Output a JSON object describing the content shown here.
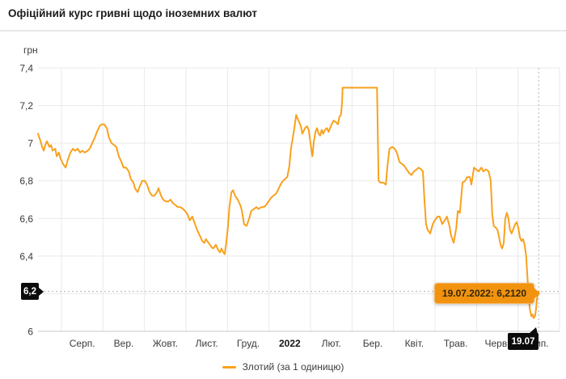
{
  "header": {
    "title": "Офіційний курс гривні щодо іноземних валют"
  },
  "colors": {
    "line": "#f9a11c",
    "tooltip_bg": "#f2930f",
    "tooltip_border": "#f6b35a",
    "tooltip_text": "#33270a",
    "crosshair_badge_bg": "#0c0c0c",
    "crosshair_badge_text": "#ffffff",
    "grid": "#e9e9e9",
    "axis": "#c8c8c8",
    "dotted": "#b3b3b3"
  },
  "crosshair": {
    "t": 0.96,
    "value": 6.212,
    "label": "19.07.2022: 6,2120",
    "x_label": "19.07",
    "y_label": "6,2"
  },
  "chart_data": {
    "type": "line",
    "title": "Офіційний курс гривні щодо іноземних валют",
    "ylabel": "грн",
    "xlabel": "",
    "grid": true,
    "legend_position": "bottom",
    "y_axis": {
      "min": 6.0,
      "max": 7.4,
      "ticks": [
        {
          "label": "7,4",
          "value": 7.4
        },
        {
          "label": "7,2",
          "value": 7.2
        },
        {
          "label": "7",
          "value": 7.0
        },
        {
          "label": "6,8",
          "value": 6.8
        },
        {
          "label": "6,6",
          "value": 6.6
        },
        {
          "label": "6,4",
          "value": 6.4
        },
        {
          "label": "6,2",
          "value": 6.2,
          "highlighted": true
        },
        {
          "label": "6",
          "value": 6.0
        }
      ]
    },
    "x_axis": {
      "months": [
        {
          "label": "Серп."
        },
        {
          "label": "Вер."
        },
        {
          "label": "Жовт."
        },
        {
          "label": "Лист."
        },
        {
          "label": "Груд."
        },
        {
          "label": "2022",
          "bold": true
        },
        {
          "label": "Лют."
        },
        {
          "label": "Бер."
        },
        {
          "label": "Квіт."
        },
        {
          "label": "Трав."
        },
        {
          "label": "Черв."
        },
        {
          "label": "Лип."
        }
      ]
    },
    "series": [
      {
        "name": "Злотий (за 1 одиницю)",
        "color": "#f9a11c",
        "points": [
          [
            0,
            7.05
          ],
          [
            0.005,
            7.01
          ],
          [
            0.008,
            6.98
          ],
          [
            0.011,
            6.96
          ],
          [
            0.014,
            6.99
          ],
          [
            0.017,
            7.01
          ],
          [
            0.022,
            6.98
          ],
          [
            0.025,
            6.99
          ],
          [
            0.028,
            6.96
          ],
          [
            0.033,
            6.97
          ],
          [
            0.036,
            6.93
          ],
          [
            0.04,
            6.95
          ],
          [
            0.043,
            6.92
          ],
          [
            0.048,
            6.89
          ],
          [
            0.053,
            6.87
          ],
          [
            0.057,
            6.91
          ],
          [
            0.062,
            6.95
          ],
          [
            0.067,
            6.97
          ],
          [
            0.071,
            6.96
          ],
          [
            0.076,
            6.97
          ],
          [
            0.081,
            6.95
          ],
          [
            0.085,
            6.96
          ],
          [
            0.09,
            6.95
          ],
          [
            0.095,
            6.96
          ],
          [
            0.099,
            6.97
          ],
          [
            0.104,
            7.0
          ],
          [
            0.109,
            7.03
          ],
          [
            0.113,
            7.06
          ],
          [
            0.118,
            7.09
          ],
          [
            0.122,
            7.1
          ],
          [
            0.127,
            7.1
          ],
          [
            0.132,
            7.08
          ],
          [
            0.136,
            7.03
          ],
          [
            0.141,
            7.0
          ],
          [
            0.146,
            6.99
          ],
          [
            0.15,
            6.98
          ],
          [
            0.155,
            6.93
          ],
          [
            0.16,
            6.9
          ],
          [
            0.164,
            6.87
          ],
          [
            0.169,
            6.87
          ],
          [
            0.174,
            6.85
          ],
          [
            0.178,
            6.81
          ],
          [
            0.183,
            6.79
          ],
          [
            0.186,
            6.76
          ],
          [
            0.191,
            6.74
          ],
          [
            0.195,
            6.77
          ],
          [
            0.2,
            6.8
          ],
          [
            0.205,
            6.8
          ],
          [
            0.209,
            6.78
          ],
          [
            0.214,
            6.74
          ],
          [
            0.219,
            6.72
          ],
          [
            0.223,
            6.72
          ],
          [
            0.228,
            6.74
          ],
          [
            0.231,
            6.76
          ],
          [
            0.236,
            6.72
          ],
          [
            0.24,
            6.7
          ],
          [
            0.245,
            6.69
          ],
          [
            0.25,
            6.69
          ],
          [
            0.254,
            6.7
          ],
          [
            0.259,
            6.68
          ],
          [
            0.264,
            6.67
          ],
          [
            0.268,
            6.66
          ],
          [
            0.273,
            6.66
          ],
          [
            0.278,
            6.65
          ],
          [
            0.282,
            6.64
          ],
          [
            0.287,
            6.62
          ],
          [
            0.291,
            6.59
          ],
          [
            0.296,
            6.61
          ],
          [
            0.301,
            6.57
          ],
          [
            0.305,
            6.54
          ],
          [
            0.31,
            6.51
          ],
          [
            0.315,
            6.48
          ],
          [
            0.319,
            6.47
          ],
          [
            0.322,
            6.49
          ],
          [
            0.327,
            6.47
          ],
          [
            0.332,
            6.45
          ],
          [
            0.336,
            6.44
          ],
          [
            0.341,
            6.46
          ],
          [
            0.346,
            6.43
          ],
          [
            0.349,
            6.42
          ],
          [
            0.352,
            6.44
          ],
          [
            0.355,
            6.42
          ],
          [
            0.358,
            6.41
          ],
          [
            0.361,
            6.47
          ],
          [
            0.364,
            6.55
          ],
          [
            0.367,
            6.66
          ],
          [
            0.371,
            6.74
          ],
          [
            0.374,
            6.75
          ],
          [
            0.378,
            6.72
          ],
          [
            0.383,
            6.7
          ],
          [
            0.388,
            6.67
          ],
          [
            0.391,
            6.64
          ],
          [
            0.395,
            6.57
          ],
          [
            0.4,
            6.56
          ],
          [
            0.405,
            6.6
          ],
          [
            0.409,
            6.64
          ],
          [
            0.414,
            6.65
          ],
          [
            0.419,
            6.66
          ],
          [
            0.423,
            6.65
          ],
          [
            0.428,
            6.66
          ],
          [
            0.433,
            6.66
          ],
          [
            0.437,
            6.67
          ],
          [
            0.442,
            6.69
          ],
          [
            0.447,
            6.71
          ],
          [
            0.451,
            6.72
          ],
          [
            0.456,
            6.73
          ],
          [
            0.46,
            6.75
          ],
          [
            0.465,
            6.78
          ],
          [
            0.47,
            6.8
          ],
          [
            0.474,
            6.81
          ],
          [
            0.478,
            6.82
          ],
          [
            0.482,
            6.88
          ],
          [
            0.485,
            6.97
          ],
          [
            0.488,
            7.02
          ],
          [
            0.491,
            7.07
          ],
          [
            0.495,
            7.15
          ],
          [
            0.498,
            7.13
          ],
          [
            0.501,
            7.11
          ],
          [
            0.504,
            7.09
          ],
          [
            0.507,
            7.05
          ],
          [
            0.512,
            7.08
          ],
          [
            0.516,
            7.09
          ],
          [
            0.519,
            7.07
          ],
          [
            0.523,
            6.99
          ],
          [
            0.526,
            6.93
          ],
          [
            0.529,
            7.01
          ],
          [
            0.532,
            7.06
          ],
          [
            0.535,
            7.08
          ],
          [
            0.538,
            7.05
          ],
          [
            0.541,
            7.04
          ],
          [
            0.544,
            7.07
          ],
          [
            0.547,
            7.05
          ],
          [
            0.55,
            7.07
          ],
          [
            0.554,
            7.08
          ],
          [
            0.557,
            7.06
          ],
          [
            0.56,
            7.08
          ],
          [
            0.563,
            7.1
          ],
          [
            0.567,
            7.12
          ],
          [
            0.572,
            7.11
          ],
          [
            0.575,
            7.1
          ],
          [
            0.578,
            7.14
          ],
          [
            0.581,
            7.15
          ],
          [
            0.583,
            7.21
          ],
          [
            0.584,
            7.295
          ],
          [
            0.65,
            7.295
          ],
          [
            0.653,
            6.8
          ],
          [
            0.657,
            6.79
          ],
          [
            0.662,
            6.79
          ],
          [
            0.667,
            6.78
          ],
          [
            0.67,
            6.88
          ],
          [
            0.674,
            6.97
          ],
          [
            0.679,
            6.98
          ],
          [
            0.684,
            6.97
          ],
          [
            0.688,
            6.95
          ],
          [
            0.693,
            6.9
          ],
          [
            0.698,
            6.89
          ],
          [
            0.702,
            6.88
          ],
          [
            0.707,
            6.86
          ],
          [
            0.712,
            6.84
          ],
          [
            0.716,
            6.83
          ],
          [
            0.721,
            6.85
          ],
          [
            0.726,
            6.86
          ],
          [
            0.73,
            6.87
          ],
          [
            0.735,
            6.86
          ],
          [
            0.738,
            6.85
          ],
          [
            0.741,
            6.7
          ],
          [
            0.744,
            6.57
          ],
          [
            0.747,
            6.54
          ],
          [
            0.752,
            6.52
          ],
          [
            0.757,
            6.57
          ],
          [
            0.761,
            6.59
          ],
          [
            0.766,
            6.61
          ],
          [
            0.77,
            6.61
          ],
          [
            0.775,
            6.57
          ],
          [
            0.78,
            6.59
          ],
          [
            0.784,
            6.61
          ],
          [
            0.789,
            6.56
          ],
          [
            0.792,
            6.51
          ],
          [
            0.797,
            6.47
          ],
          [
            0.802,
            6.55
          ],
          [
            0.805,
            6.64
          ],
          [
            0.809,
            6.63
          ],
          [
            0.814,
            6.79
          ],
          [
            0.819,
            6.8
          ],
          [
            0.823,
            6.82
          ],
          [
            0.828,
            6.82
          ],
          [
            0.831,
            6.78
          ],
          [
            0.836,
            6.87
          ],
          [
            0.84,
            6.86
          ],
          [
            0.845,
            6.85
          ],
          [
            0.85,
            6.87
          ],
          [
            0.854,
            6.85
          ],
          [
            0.859,
            6.86
          ],
          [
            0.864,
            6.85
          ],
          [
            0.868,
            6.8
          ],
          [
            0.871,
            6.62
          ],
          [
            0.874,
            6.56
          ],
          [
            0.878,
            6.55
          ],
          [
            0.881,
            6.54
          ],
          [
            0.884,
            6.5
          ],
          [
            0.887,
            6.46
          ],
          [
            0.89,
            6.44
          ],
          [
            0.893,
            6.47
          ],
          [
            0.896,
            6.6
          ],
          [
            0.899,
            6.63
          ],
          [
            0.902,
            6.6
          ],
          [
            0.905,
            6.54
          ],
          [
            0.908,
            6.52
          ],
          [
            0.911,
            6.54
          ],
          [
            0.915,
            6.57
          ],
          [
            0.918,
            6.58
          ],
          [
            0.921,
            6.55
          ],
          [
            0.924,
            6.5
          ],
          [
            0.927,
            6.48
          ],
          [
            0.93,
            6.49
          ],
          [
            0.933,
            6.46
          ],
          [
            0.936,
            6.4
          ],
          [
            0.94,
            6.22
          ],
          [
            0.943,
            6.12
          ],
          [
            0.946,
            6.08
          ],
          [
            0.949,
            6.09
          ],
          [
            0.95,
            6.07
          ],
          [
            0.953,
            6.08
          ],
          [
            0.955,
            6.12
          ],
          [
            0.957,
            6.18
          ],
          [
            0.96,
            6.212
          ]
        ]
      }
    ],
    "annotations": {
      "selected_point": {
        "date": "19.07.2022",
        "value": "6,2120"
      }
    }
  }
}
